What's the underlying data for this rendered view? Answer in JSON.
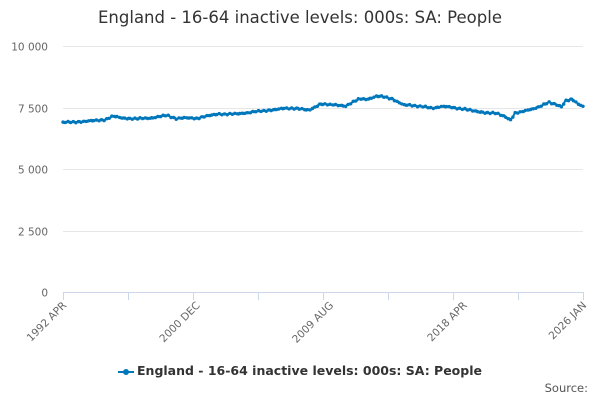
{
  "chart_data": {
    "type": "line",
    "title": "England - 16-64 inactive levels: 000s: SA: People",
    "xlabel": "",
    "ylabel": "",
    "x_range": [
      "1992 APR",
      "2026 JAN"
    ],
    "ylim": [
      0,
      10000
    ],
    "y_ticks": [
      0,
      2500,
      5000,
      7500,
      10000
    ],
    "y_tick_labels": [
      "0",
      "2 500",
      "5 000",
      "7 500",
      "10 000"
    ],
    "x_tick_labels": [
      "1992 APR",
      "2000 DEC",
      "2009 AUG",
      "2018 APR",
      "2026 JAN"
    ],
    "x_tick_positions": [
      1992.25,
      2000.92,
      2009.58,
      2018.25,
      2026.0
    ],
    "series": [
      {
        "name": "England - 16-64 inactive levels: 000s: SA: People",
        "color": "#0077bb",
        "points": [
          [
            1992.25,
            6890
          ],
          [
            1993.0,
            6910
          ],
          [
            1994.0,
            6950
          ],
          [
            1995.0,
            7010
          ],
          [
            1995.5,
            7150
          ],
          [
            1996.0,
            7080
          ],
          [
            1997.0,
            7040
          ],
          [
            1998.0,
            7080
          ],
          [
            1999.0,
            7180
          ],
          [
            1999.6,
            7050
          ],
          [
            2000.2,
            7080
          ],
          [
            2000.92,
            7060
          ],
          [
            2001.5,
            7150
          ],
          [
            2002.3,
            7220
          ],
          [
            2003.0,
            7240
          ],
          [
            2003.8,
            7240
          ],
          [
            2004.5,
            7320
          ],
          [
            2005.2,
            7360
          ],
          [
            2006.0,
            7420
          ],
          [
            2006.6,
            7460
          ],
          [
            2007.5,
            7470
          ],
          [
            2008.2,
            7380
          ],
          [
            2009.0,
            7660
          ],
          [
            2009.58,
            7610
          ],
          [
            2010.2,
            7600
          ],
          [
            2010.6,
            7560
          ],
          [
            2011.0,
            7700
          ],
          [
            2011.5,
            7850
          ],
          [
            2012.0,
            7840
          ],
          [
            2012.6,
            7950
          ],
          [
            2013.0,
            7940
          ],
          [
            2013.6,
            7860
          ],
          [
            2014.0,
            7720
          ],
          [
            2014.4,
            7600
          ],
          [
            2015.0,
            7580
          ],
          [
            2015.6,
            7540
          ],
          [
            2016.2,
            7470
          ],
          [
            2016.8,
            7540
          ],
          [
            2017.4,
            7520
          ],
          [
            2018.25,
            7430
          ],
          [
            2019.0,
            7360
          ],
          [
            2019.8,
            7280
          ],
          [
            2020.4,
            7260
          ],
          [
            2020.9,
            7150
          ],
          [
            2021.3,
            7000
          ],
          [
            2021.6,
            7280
          ],
          [
            2022.0,
            7320
          ],
          [
            2022.6,
            7420
          ],
          [
            2023.2,
            7540
          ],
          [
            2023.8,
            7710
          ],
          [
            2024.3,
            7620
          ],
          [
            2024.6,
            7540
          ],
          [
            2024.9,
            7790
          ],
          [
            2025.3,
            7840
          ],
          [
            2025.7,
            7630
          ],
          [
            2026.0,
            7550
          ]
        ]
      }
    ],
    "legend": "bottom-center",
    "grid": "horizontal"
  },
  "credits": "Source:",
  "colors": {
    "series": "#0077bb",
    "grid": "#e6e6e6",
    "axis": "#ccd6eb",
    "text": "#333333",
    "tick_text": "#666666"
  }
}
